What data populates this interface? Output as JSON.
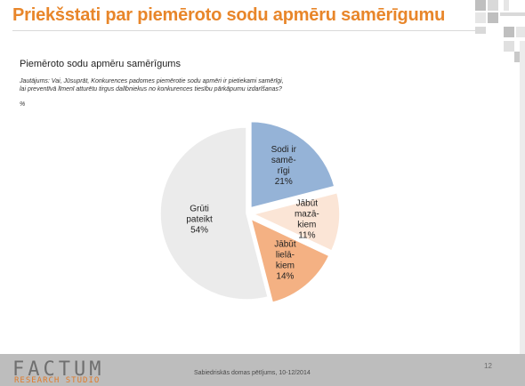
{
  "slide": {
    "title": "Priekšstati par piemēroto sodu apmēru samērīgumu",
    "footer_text": "Sabiedriskās domas pētījums, 10-12/2014",
    "page_number": "12",
    "logo_top": "FACTUM",
    "logo_bottom": "RESEARCH STUDIO",
    "colors": {
      "title": "#e8862a",
      "footer_bg": "#bdbdbd"
    }
  },
  "chart_data": {
    "type": "pie",
    "title": "Piemēroto sodu apmēru samērīgums",
    "subtitle": "Jautājums: Vai, Jūsuprāt, Konkurences padomes piemērotie sodu apmēri ir pietiekami samērīgi, lai preventīvā līmenī atturētu tirgus dalībniekus no konkurences tiesību pārkāpumu izdarīšanas?",
    "unit": "%",
    "slices": [
      {
        "label": "Sodi ir samērīgi",
        "label_lines": [
          "Sodi ir",
          "samē-",
          "rīgi",
          "21%"
        ],
        "value": 21,
        "color": "#95b3d7",
        "exploded": true
      },
      {
        "label": "Jābūt mazākiem",
        "label_lines": [
          "Jābūt",
          "mazā-",
          "kiem",
          "11%"
        ],
        "value": 11,
        "color": "#fbe5d6",
        "exploded": true
      },
      {
        "label": "Jābūt lielākiem",
        "label_lines": [
          "Jābūt",
          "lielā-",
          "kiem",
          "14%"
        ],
        "value": 14,
        "color": "#f4b183",
        "exploded": true
      },
      {
        "label": "Grūti pateikt",
        "label_lines": [
          "Grūti",
          "pateikt",
          "54%"
        ],
        "value": 54,
        "color": "#ebebeb",
        "exploded": false
      }
    ]
  }
}
